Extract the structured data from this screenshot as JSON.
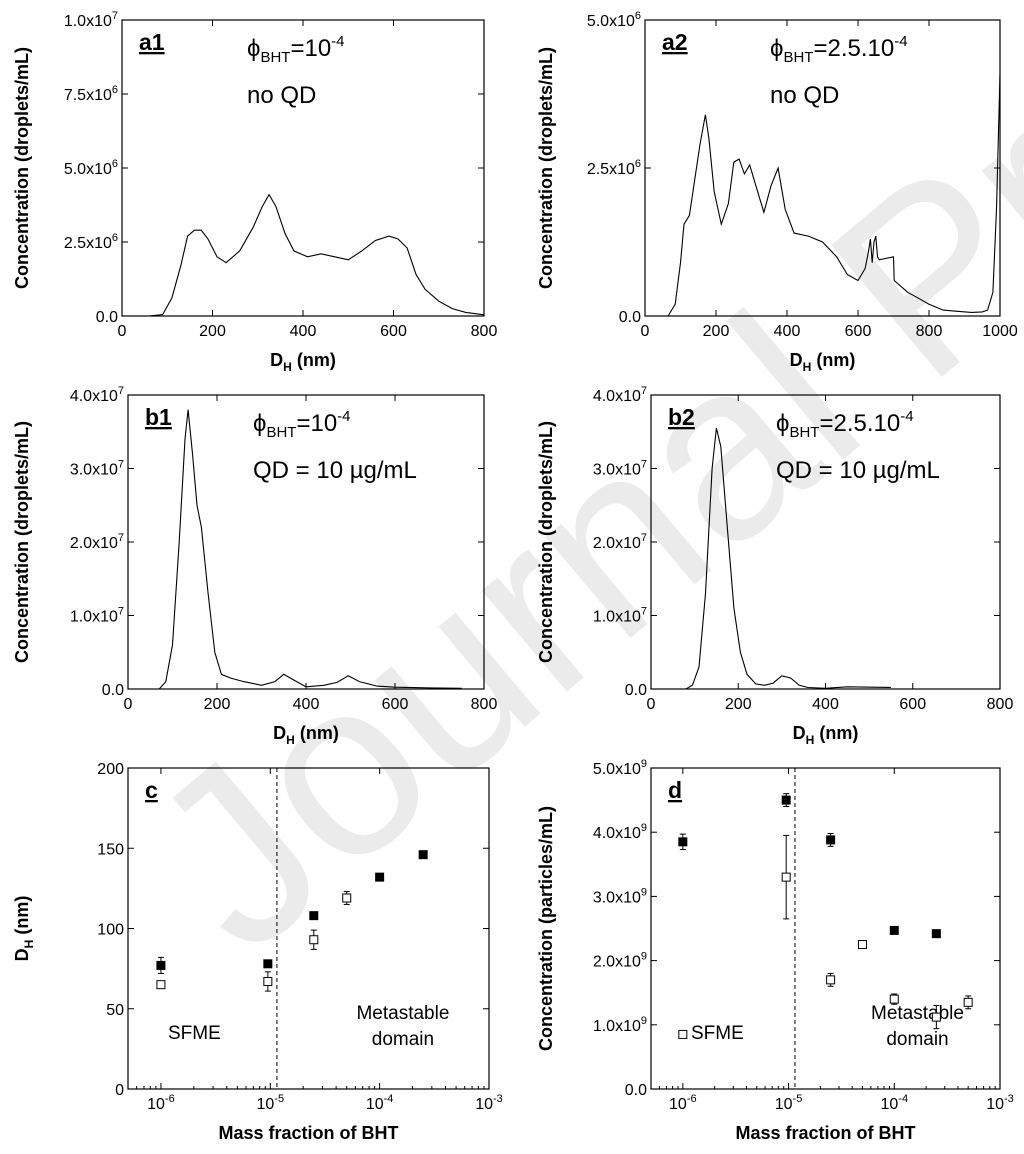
{
  "chart_data": [
    {
      "id": "a1",
      "type": "line",
      "panel_label": "a1",
      "annotation_line1": {
        "prefix": "ϕ",
        "sub": "BHT",
        "suffix": "=10",
        "sup": "-4"
      },
      "annotation_line2": "no QD",
      "xlabel": {
        "main": "D",
        "sub": "H",
        "rest": " (nm)"
      },
      "ylabel": "Concentration (droplets/mL)",
      "xlim": [
        0,
        800
      ],
      "ylim": [
        0,
        10000000
      ],
      "xticks": [
        0,
        200,
        400,
        600,
        800
      ],
      "xtick_labels": [
        "0",
        "200",
        "400",
        "600",
        "800"
      ],
      "yticks": [
        0,
        2500000,
        5000000,
        7500000,
        10000000
      ],
      "ytick_labels": [
        {
          "m": "0.0",
          "e": ""
        },
        {
          "m": "2.5x10",
          "e": "6"
        },
        {
          "m": "5.0x10",
          "e": "6"
        },
        {
          "m": "7.5x10",
          "e": "6"
        },
        {
          "m": "1.0x10",
          "e": "7"
        }
      ],
      "x": [
        0,
        60,
        90,
        110,
        130,
        145,
        160,
        175,
        190,
        210,
        230,
        260,
        290,
        310,
        325,
        340,
        360,
        380,
        410,
        440,
        470,
        500,
        530,
        560,
        590,
        610,
        630,
        650,
        670,
        700,
        730,
        760,
        800
      ],
      "y": [
        0,
        0,
        50000,
        600000,
        1700000,
        2700000,
        2900000,
        2900000,
        2600000,
        2000000,
        1800000,
        2200000,
        3000000,
        3700000,
        4100000,
        3700000,
        2800000,
        2200000,
        2000000,
        2100000,
        2000000,
        1900000,
        2200000,
        2550000,
        2700000,
        2600000,
        2300000,
        1400000,
        900000,
        500000,
        250000,
        120000,
        40000
      ]
    },
    {
      "id": "a2",
      "type": "line",
      "panel_label": "a2",
      "annotation_line1": {
        "prefix": "ϕ",
        "sub": "BHT",
        "suffix": "=2.5.10",
        "sup": "-4"
      },
      "annotation_line2": "no QD",
      "xlabel": {
        "main": "D",
        "sub": "H",
        "rest": " (nm)"
      },
      "ylabel": "Concentration (droplets/mL)",
      "xlim": [
        0,
        1000
      ],
      "ylim": [
        0,
        5000000
      ],
      "xticks": [
        0,
        200,
        400,
        600,
        800,
        1000
      ],
      "xtick_labels": [
        "0",
        "200",
        "400",
        "600",
        "800",
        "1000"
      ],
      "yticks": [
        0,
        2500000,
        5000000
      ],
      "ytick_labels": [
        {
          "m": "0.0",
          "e": ""
        },
        {
          "m": "2.5x10",
          "e": "6"
        },
        {
          "m": "5.0x10",
          "e": "6"
        }
      ],
      "x": [
        0,
        65,
        85,
        100,
        110,
        125,
        140,
        155,
        170,
        180,
        195,
        215,
        235,
        250,
        265,
        280,
        295,
        310,
        335,
        355,
        375,
        395,
        420,
        460,
        500,
        540,
        570,
        600,
        620,
        630,
        635,
        640,
        645,
        650,
        655,
        660,
        700,
        702,
        740,
        770,
        800,
        840,
        880,
        920,
        950,
        965,
        980,
        990,
        1000
      ],
      "y": [
        0,
        0,
        200000,
        900000,
        1550000,
        1700000,
        2300000,
        2900000,
        3400000,
        3000000,
        2100000,
        1550000,
        1900000,
        2600000,
        2650000,
        2400000,
        2550000,
        2250000,
        1750000,
        2200000,
        2500000,
        1800000,
        1400000,
        1350000,
        1250000,
        1000000,
        700000,
        600000,
        800000,
        1100000,
        1300000,
        900000,
        1250000,
        1350000,
        1000000,
        950000,
        1000000,
        600000,
        400000,
        300000,
        200000,
        100000,
        80000,
        60000,
        70000,
        100000,
        400000,
        1800000,
        4100000
      ]
    },
    {
      "id": "b1",
      "type": "line",
      "panel_label": "b1",
      "annotation_line1": {
        "prefix": "ϕ",
        "sub": "BHT",
        "suffix": "=10",
        "sup": "-4"
      },
      "annotation_line2": "QD = 10 µg/mL",
      "xlabel": {
        "main": "D",
        "sub": "H",
        "rest": " (nm)"
      },
      "ylabel": "Concentration (droplets/mL)",
      "xlim": [
        0,
        800
      ],
      "ylim": [
        0,
        40000000
      ],
      "xticks": [
        0,
        200,
        400,
        600,
        800
      ],
      "xtick_labels": [
        "0",
        "200",
        "400",
        "600",
        "800"
      ],
      "yticks": [
        0,
        10000000,
        20000000,
        30000000,
        40000000
      ],
      "ytick_labels": [
        {
          "m": "0.0",
          "e": ""
        },
        {
          "m": "1.0x10",
          "e": "7"
        },
        {
          "m": "2.0x10",
          "e": "7"
        },
        {
          "m": "3.0x10",
          "e": "7"
        },
        {
          "m": "4.0x10",
          "e": "7"
        }
      ],
      "x": [
        0,
        70,
        85,
        100,
        115,
        128,
        135,
        145,
        155,
        165,
        180,
        195,
        210,
        230,
        260,
        300,
        330,
        350,
        370,
        400,
        440,
        470,
        495,
        520,
        560,
        600,
        680,
        750
      ],
      "y": [
        0,
        0,
        1000000,
        6000000,
        20000000,
        34000000,
        38000000,
        32000000,
        25000000,
        22000000,
        13000000,
        5000000,
        2000000,
        1500000,
        1000000,
        500000,
        1000000,
        2000000,
        1300000,
        300000,
        500000,
        900000,
        1800000,
        1000000,
        400000,
        250000,
        150000,
        100000
      ]
    },
    {
      "id": "b2",
      "type": "line",
      "panel_label": "b2",
      "annotation_line1": {
        "prefix": "ϕ",
        "sub": "BHT",
        "suffix": "=2.5.10",
        "sup": "-4"
      },
      "annotation_line2": "QD = 10 µg/mL",
      "xlabel": {
        "main": "D",
        "sub": "H",
        "rest": " (nm)"
      },
      "ylabel": "Concentration (droplets/mL)",
      "xlim": [
        0,
        800
      ],
      "ylim": [
        0,
        40000000
      ],
      "xticks": [
        0,
        200,
        400,
        600,
        800
      ],
      "xtick_labels": [
        "0",
        "200",
        "400",
        "600",
        "800"
      ],
      "yticks": [
        0,
        10000000,
        20000000,
        30000000,
        40000000
      ],
      "ytick_labels": [
        {
          "m": "0.0",
          "e": ""
        },
        {
          "m": "1.0x10",
          "e": "7"
        },
        {
          "m": "2.0x10",
          "e": "7"
        },
        {
          "m": "3.0x10",
          "e": "7"
        },
        {
          "m": "4.0x10",
          "e": "7"
        }
      ],
      "x": [
        0,
        80,
        95,
        110,
        125,
        140,
        150,
        160,
        175,
        190,
        205,
        220,
        240,
        260,
        280,
        300,
        320,
        340,
        360,
        400,
        450,
        550
      ],
      "y": [
        0,
        0,
        500000,
        3000000,
        13000000,
        30000000,
        35500000,
        33000000,
        22000000,
        11000000,
        5000000,
        2000000,
        700000,
        500000,
        800000,
        1800000,
        1500000,
        500000,
        200000,
        100000,
        300000,
        200000
      ]
    },
    {
      "id": "c",
      "type": "scatter",
      "xscale": "log",
      "panel_label": "c",
      "xlabel": "Mass fraction of BHT",
      "ylabel": {
        "main": "D",
        "sub": "H",
        "rest": " (nm)"
      },
      "xlim": [
        5e-07,
        0.001
      ],
      "ylim": [
        0,
        200
      ],
      "xticks": [
        1e-06,
        1e-05,
        0.0001,
        0.001
      ],
      "xtick_labels": [
        {
          "m": "10",
          "e": "-6"
        },
        {
          "m": "10",
          "e": "-5"
        },
        {
          "m": "10",
          "e": "-4"
        },
        {
          "m": "10",
          "e": "-3"
        }
      ],
      "yticks": [
        0,
        50,
        100,
        150,
        200
      ],
      "ytick_labels": [
        "0",
        "50",
        "100",
        "150",
        "200"
      ],
      "divider_x": 1.15e-05,
      "region_left": [
        "SFME"
      ],
      "region_right": [
        "Metastable",
        "domain"
      ],
      "series": [
        {
          "marker": "filled-square",
          "x": [
            1e-06,
            9.5e-06,
            2.5e-05,
            0.0001,
            0.00025
          ],
          "y": [
            77,
            78,
            108,
            132,
            146
          ],
          "err": [
            5,
            2,
            2,
            2,
            1
          ]
        },
        {
          "marker": "open-square",
          "x": [
            1e-06,
            9.5e-06,
            2.5e-05,
            5e-05
          ],
          "y": [
            65,
            67,
            93,
            119
          ],
          "err": [
            2,
            6,
            6,
            4
          ]
        }
      ]
    },
    {
      "id": "d",
      "type": "scatter",
      "xscale": "log",
      "panel_label": "d",
      "xlabel": "Mass fraction of BHT",
      "ylabel": "Concentration (particles/mL)",
      "xlim": [
        5e-07,
        0.001
      ],
      "ylim": [
        0,
        5000000000
      ],
      "xticks": [
        1e-06,
        1e-05,
        0.0001,
        0.001
      ],
      "xtick_labels": [
        {
          "m": "10",
          "e": "-6"
        },
        {
          "m": "10",
          "e": "-5"
        },
        {
          "m": "10",
          "e": "-4"
        },
        {
          "m": "10",
          "e": "-3"
        }
      ],
      "yticks": [
        0,
        1000000000,
        2000000000,
        3000000000,
        4000000000,
        5000000000
      ],
      "ytick_labels": [
        {
          "m": "0.0",
          "e": ""
        },
        {
          "m": "1.0x10",
          "e": "9"
        },
        {
          "m": "2.0x10",
          "e": "9"
        },
        {
          "m": "3.0x10",
          "e": "9"
        },
        {
          "m": "4.0x10",
          "e": "9"
        },
        {
          "m": "5.0x10",
          "e": "9"
        }
      ],
      "divider_x": 1.15e-05,
      "region_left": [
        "SFME"
      ],
      "region_right": [
        "Metastable",
        "domain"
      ],
      "series": [
        {
          "marker": "filled-square",
          "x": [
            1e-06,
            9.5e-06,
            2.5e-05,
            0.0001,
            0.00025
          ],
          "y": [
            3850000000,
            4500000000,
            3880000000,
            2470000000,
            2420000000
          ],
          "err": [
            120000000,
            100000000,
            100000000,
            40000000,
            40000000
          ]
        },
        {
          "marker": "open-square",
          "x": [
            1e-06,
            9.5e-06,
            2.5e-05,
            5e-05,
            0.0001,
            0.00025,
            0.0005
          ],
          "y": [
            850000000,
            3300000000,
            1700000000,
            2250000000,
            1400000000,
            1120000000,
            1350000000
          ],
          "err": [
            20000000,
            650000000,
            100000000,
            40000000,
            80000000,
            180000000,
            100000000
          ]
        }
      ]
    }
  ]
}
